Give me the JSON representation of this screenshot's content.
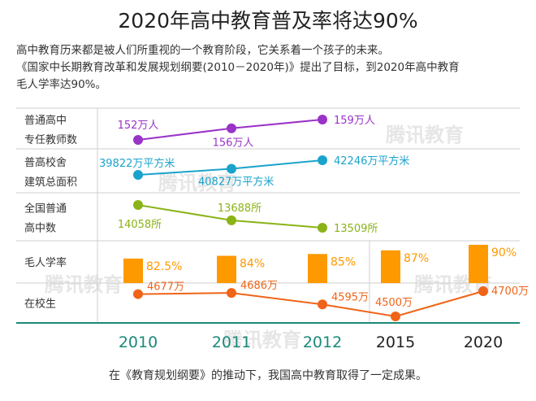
{
  "title": "2020年高中教育普及率将达90%",
  "intro": {
    "line1": "高中教育历来都是被人们所重视的一个教育阶段，它关系着一个孩子的未来。",
    "line2": "《国家中长期教育改革和发展规划纲要(2010－2020年)》提出了目标，到2020年高中教育",
    "line3": "毛人学率达90%。"
  },
  "watermark": "腾讯教育",
  "caption": "在《教育规划纲要》的推动下，我国高中教育取得了一定成果。",
  "colors": {
    "purple": "#9a33c8",
    "blue": "#1aa3cc",
    "green": "#8ab317",
    "orange_bar": "#ff9900",
    "orange_line": "#f06418",
    "axis": "#1a8a7a",
    "grid": "#cfcfcf"
  },
  "chart_data": {
    "type": "table",
    "title": "2020年高中教育普及率将达90%",
    "years": [
      "2010",
      "2011",
      "2012",
      "2015",
      "2020"
    ],
    "rows": [
      {
        "label": [
          "普通高中",
          "专任教师数"
        ],
        "type": "line",
        "values": [
          152,
          156,
          159
        ],
        "labels": [
          "152万人",
          "156万人",
          "159万人"
        ]
      },
      {
        "label": [
          "普高校舍",
          "建筑总面积"
        ],
        "type": "line",
        "values": [
          39822,
          40827,
          42246
        ],
        "labels": [
          "39822万平方米",
          "40827万平方米",
          "42246万平方米"
        ]
      },
      {
        "label": [
          "全国普通",
          "高中数"
        ],
        "type": "line",
        "values": [
          14058,
          13688,
          13509
        ],
        "labels": [
          "14058所",
          "13688所",
          "13509所"
        ]
      },
      {
        "label": [
          "毛人学率"
        ],
        "type": "bar",
        "values": [
          82.5,
          84,
          85,
          87,
          90
        ],
        "labels": [
          "82.5%",
          "84%",
          "85%",
          "87%",
          "90%"
        ]
      },
      {
        "label": [
          "在校生"
        ],
        "type": "line",
        "values": [
          4677,
          4686,
          4595,
          4500,
          4700
        ],
        "labels": [
          "4677万",
          "4686万",
          "4595万",
          "4500万",
          "4700万"
        ]
      }
    ]
  }
}
